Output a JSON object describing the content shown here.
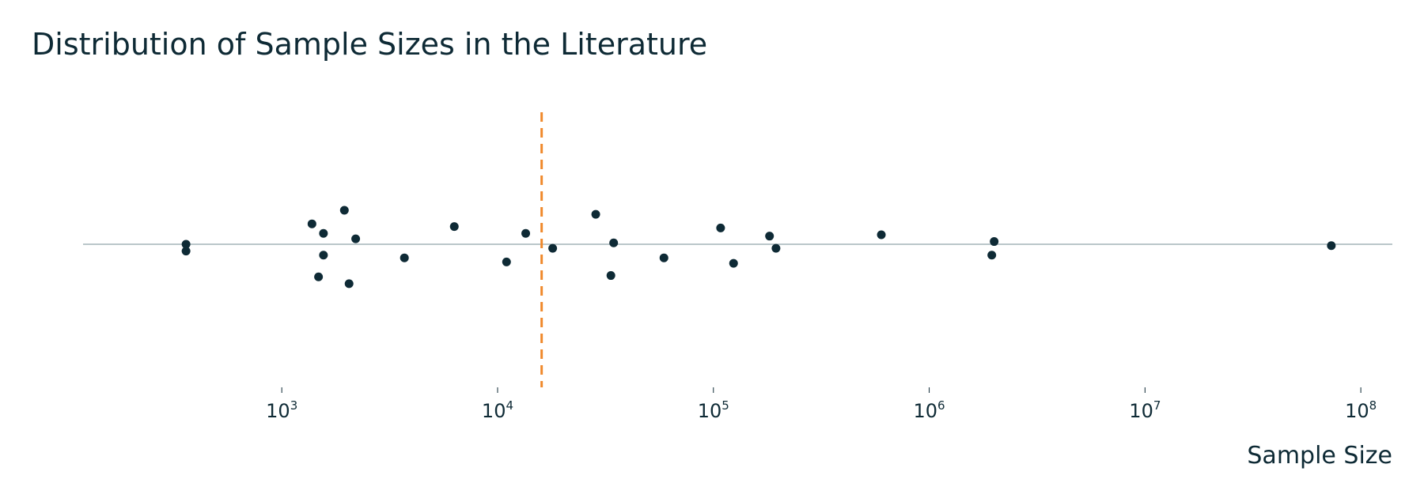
{
  "chart_data": {
    "type": "scatter",
    "title": "Distribution of Sample Sizes in the Literature",
    "xlabel": "Sample Size",
    "ylabel": "",
    "x_scale": "log",
    "xlim": [
      120,
      140000000
    ],
    "ylim": [
      -1,
      1
    ],
    "grid": false,
    "x_ticks": [
      {
        "value": 1000,
        "base": "10",
        "exp": "3"
      },
      {
        "value": 10000,
        "base": "10",
        "exp": "4"
      },
      {
        "value": 100000,
        "base": "10",
        "exp": "5"
      },
      {
        "value": 1000000,
        "base": "10",
        "exp": "6"
      },
      {
        "value": 10000000,
        "base": "10",
        "exp": "7"
      },
      {
        "value": 100000000,
        "base": "10",
        "exp": "8"
      }
    ],
    "reference_line": {
      "x": 16000,
      "style": "dashed",
      "color": "#f0892c"
    },
    "series": [
      {
        "color": "#0e2a35",
        "points": [
          {
            "x": 360,
            "y": 0.0
          },
          {
            "x": 360,
            "y": -0.05
          },
          {
            "x": 1380,
            "y": 0.15
          },
          {
            "x": 1560,
            "y": 0.08
          },
          {
            "x": 1560,
            "y": -0.08
          },
          {
            "x": 1480,
            "y": -0.24
          },
          {
            "x": 1950,
            "y": 0.25
          },
          {
            "x": 2200,
            "y": 0.04
          },
          {
            "x": 2050,
            "y": -0.29
          },
          {
            "x": 3700,
            "y": -0.1
          },
          {
            "x": 6300,
            "y": 0.13
          },
          {
            "x": 11000,
            "y": -0.13
          },
          {
            "x": 13500,
            "y": 0.08
          },
          {
            "x": 18000,
            "y": -0.03
          },
          {
            "x": 28500,
            "y": 0.22
          },
          {
            "x": 34500,
            "y": 0.01
          },
          {
            "x": 33500,
            "y": -0.23
          },
          {
            "x": 59000,
            "y": -0.1
          },
          {
            "x": 108000,
            "y": 0.12
          },
          {
            "x": 124000,
            "y": -0.14
          },
          {
            "x": 182000,
            "y": 0.06
          },
          {
            "x": 195000,
            "y": -0.03
          },
          {
            "x": 600000,
            "y": 0.07
          },
          {
            "x": 2000000,
            "y": 0.02
          },
          {
            "x": 1950000,
            "y": -0.08
          },
          {
            "x": 73000000,
            "y": -0.01
          }
        ]
      }
    ]
  },
  "colors": {
    "text": "#0e2a35",
    "points": "#0e2a35",
    "baseline": "#a3b3b8",
    "reference_line": "#f0892c"
  }
}
